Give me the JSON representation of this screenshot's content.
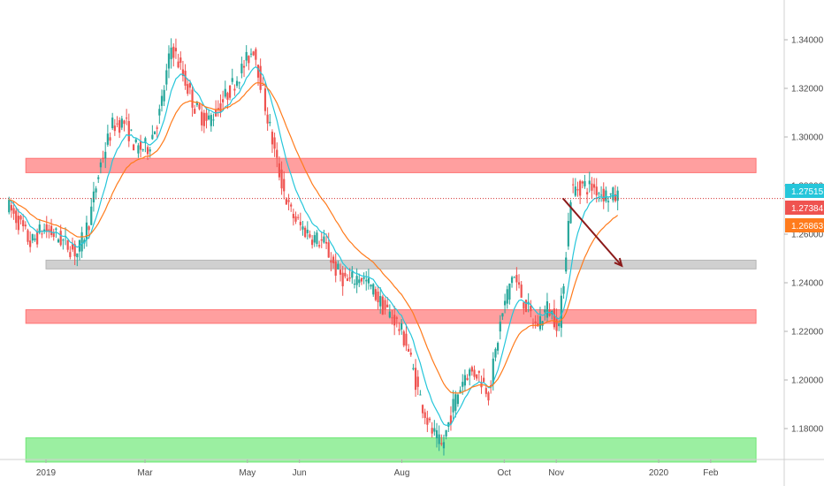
{
  "chart_data": {
    "type": "candlestick",
    "instrument_note": "",
    "y_axis": {
      "ticks": [
        "1.34000",
        "1.32000",
        "1.30000",
        "1.28000",
        "1.26000",
        "1.24000",
        "1.22000",
        "1.20000",
        "1.18000"
      ],
      "ylim": [
        1.163,
        1.352
      ]
    },
    "x_axis": {
      "ticks": [
        "2019",
        "Mar",
        "May",
        "Jun",
        "Aug",
        "Oct",
        "Nov",
        "2020",
        "Feb"
      ]
    },
    "price_labels": [
      {
        "name": "last-price",
        "value": "1.27515",
        "color": "#26c6da"
      },
      {
        "name": "ema-fast",
        "value": "1.27384",
        "color": "#ef5350"
      },
      {
        "name": "ema-slow",
        "value": "1.26863",
        "color": "#ff7b1c"
      }
    ],
    "zones": [
      {
        "name": "resistance-upper",
        "from": 1.2853,
        "to": 1.2912,
        "color": "#ff6b6b",
        "x_start_date": "2018-12-20",
        "x_end_date": "2020-02-28"
      },
      {
        "name": "mid-level",
        "from": 1.2457,
        "to": 1.2493,
        "color": "#b0b0b0",
        "x_start_date": "2019-01-01",
        "x_end_date": "2020-02-28"
      },
      {
        "name": "support-lower",
        "from": 1.2233,
        "to": 1.2289,
        "color": "#ff6b6b",
        "x_start_date": "2018-12-20",
        "x_end_date": "2020-02-28"
      },
      {
        "name": "demand-zone",
        "from": 1.1662,
        "to": 1.1762,
        "color": "#66e66e",
        "x_start_date": "2018-12-20",
        "x_end_date": "2020-02-28"
      }
    ],
    "current_price_line": 1.2747,
    "arrow": {
      "from": [
        "2019-11-05",
        1.2747
      ],
      "to": [
        "2019-12-10",
        1.247
      ],
      "color": "#8b1a1a"
    },
    "price_path": [
      [
        "2018-12-10",
        1.272
      ],
      [
        "2018-12-17",
        1.265
      ],
      [
        "2018-12-24",
        1.256
      ],
      [
        "2018-12-31",
        1.262
      ],
      [
        "2019-01-07",
        1.26
      ],
      [
        "2019-01-14",
        1.256
      ],
      [
        "2019-01-21",
        1.252
      ],
      [
        "2019-01-28",
        1.266
      ],
      [
        "2019-02-04",
        1.29
      ],
      [
        "2019-02-11",
        1.305
      ],
      [
        "2019-02-18",
        1.306
      ],
      [
        "2019-02-25",
        1.295
      ],
      [
        "2019-03-04",
        1.296
      ],
      [
        "2019-03-11",
        1.31
      ],
      [
        "2019-03-18",
        1.338
      ],
      [
        "2019-03-25",
        1.325
      ],
      [
        "2019-04-01",
        1.312
      ],
      [
        "2019-04-08",
        1.306
      ],
      [
        "2019-04-15",
        1.312
      ],
      [
        "2019-04-22",
        1.32
      ],
      [
        "2019-04-29",
        1.328
      ],
      [
        "2019-05-06",
        1.337
      ],
      [
        "2019-05-13",
        1.312
      ],
      [
        "2019-05-20",
        1.288
      ],
      [
        "2019-05-27",
        1.27
      ],
      [
        "2019-06-03",
        1.263
      ],
      [
        "2019-06-10",
        1.259
      ],
      [
        "2019-06-17",
        1.256
      ],
      [
        "2019-06-24",
        1.245
      ],
      [
        "2019-07-01",
        1.24
      ],
      [
        "2019-07-08",
        1.243
      ],
      [
        "2019-07-15",
        1.238
      ],
      [
        "2019-07-22",
        1.23
      ],
      [
        "2019-07-29",
        1.225
      ],
      [
        "2019-08-05",
        1.215
      ],
      [
        "2019-08-12",
        1.195
      ],
      [
        "2019-08-19",
        1.18
      ],
      [
        "2019-08-26",
        1.172
      ],
      [
        "2019-09-02",
        1.19
      ],
      [
        "2019-09-09",
        1.203
      ],
      [
        "2019-09-16",
        1.203
      ],
      [
        "2019-09-23",
        1.195
      ],
      [
        "2019-09-30",
        1.224
      ],
      [
        "2019-10-07",
        1.244
      ],
      [
        "2019-10-14",
        1.232
      ],
      [
        "2019-10-21",
        1.222
      ],
      [
        "2019-10-28",
        1.23
      ],
      [
        "2019-11-04",
        1.222
      ],
      [
        "2019-11-11",
        1.278
      ],
      [
        "2019-11-18",
        1.28
      ],
      [
        "2019-11-25",
        1.279
      ],
      [
        "2019-12-02",
        1.276
      ],
      [
        "2019-12-09",
        1.2752
      ]
    ]
  }
}
